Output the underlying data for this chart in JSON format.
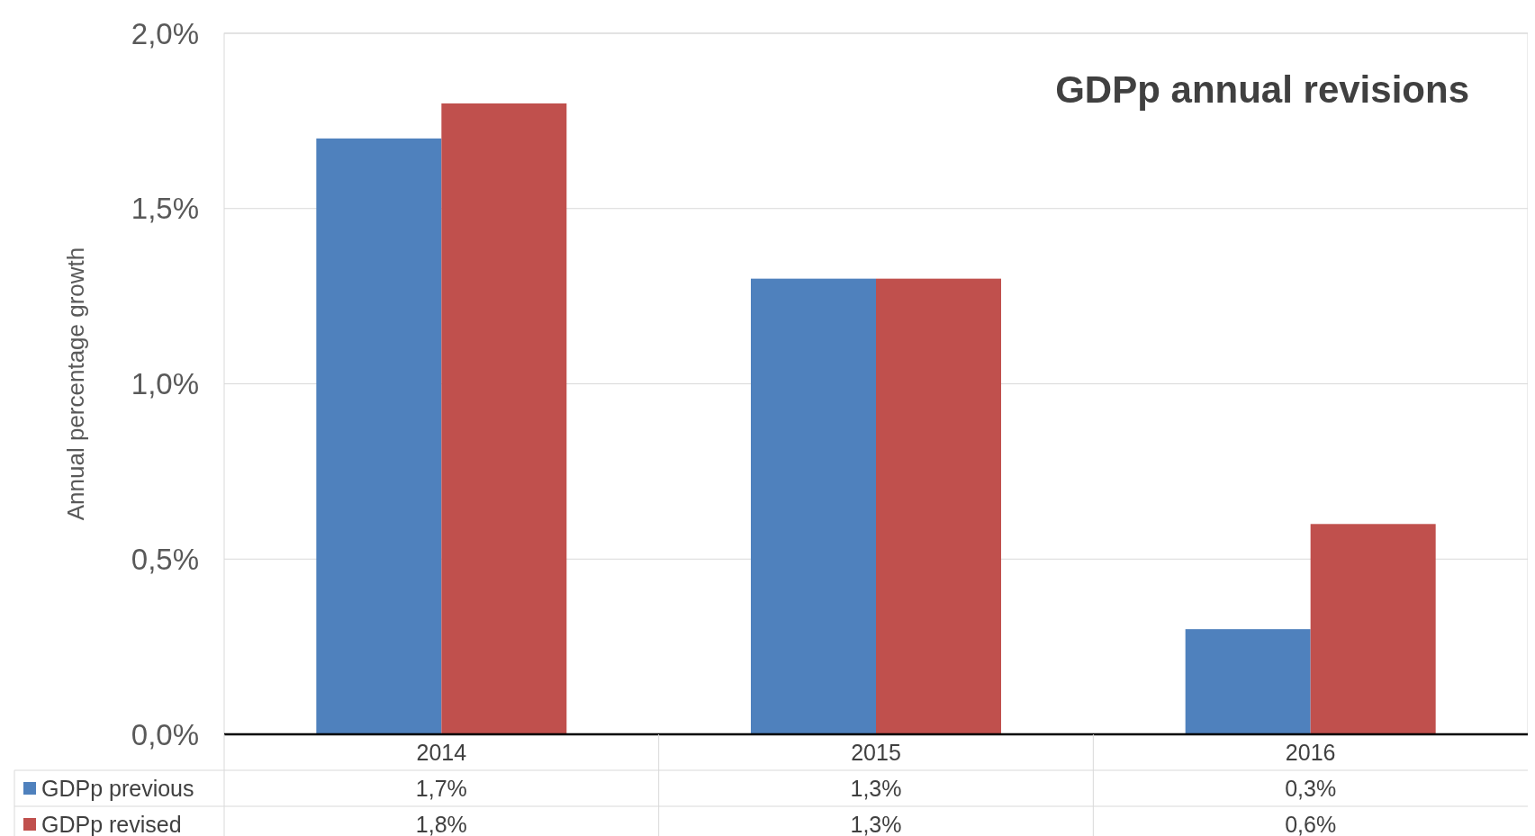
{
  "chart_data": {
    "type": "bar",
    "title": "GDPp annual revisions",
    "ylabel": "Annual percentage growth",
    "categories": [
      "2014",
      "2015",
      "2016"
    ],
    "series": [
      {
        "name": "GDPp previous",
        "color": "#4f81bd",
        "values": [
          1.7,
          1.3,
          0.3
        ],
        "value_labels": [
          "1,7%",
          "1,3%",
          "0,3%"
        ]
      },
      {
        "name": "GDPp revised",
        "color": "#c0504d",
        "values": [
          1.8,
          1.3,
          0.6
        ],
        "value_labels": [
          "1,8%",
          "1,3%",
          "0,6%"
        ]
      }
    ],
    "ylim": [
      0,
      2
    ],
    "yticks": [
      {
        "value": 0,
        "label": "0,0%"
      },
      {
        "value": 0.5,
        "label": "0,5%"
      },
      {
        "value": 1,
        "label": "1,0%"
      },
      {
        "value": 1.5,
        "label": "1,5%"
      },
      {
        "value": 2,
        "label": "2,0%"
      }
    ],
    "grid": "y",
    "legend": "bottom"
  }
}
